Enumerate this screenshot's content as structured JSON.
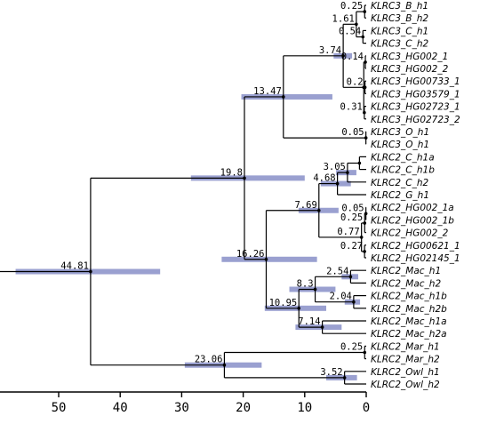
{
  "colors": {
    "branch": "#000000",
    "hpd_bar": "#9aa0d0"
  },
  "axis": {
    "reversed": true,
    "range": [
      0,
      60
    ],
    "ticks": [
      {
        "value": 50,
        "label": "50"
      },
      {
        "value": 40,
        "label": "40"
      },
      {
        "value": 30,
        "label": "30"
      },
      {
        "value": 20,
        "label": "20"
      },
      {
        "value": 10,
        "label": "10"
      },
      {
        "value": 0,
        "label": "0"
      }
    ]
  },
  "taxa": [
    "KLRC3_B_h1",
    "KLRC3_B_h2",
    "KLRC3_C_h1",
    "KLRC3_C_h2",
    "KLRC3_HG002_1",
    "KLRC3_HG002_2",
    "KLRC3_HG00733_1",
    "KLRC3_HG03579_1",
    "KLRC3_HG02723_1",
    "KLRC3_HG02723_2",
    "KLRC3_O_h1",
    "KLRC3_O_h1",
    "KLRC2_C_h1a",
    "KLRC2_C_h1b",
    "KLRC2_C_h2",
    "KLRC2_G_h1",
    "KLRC2_HG002_1a",
    "KLRC2_HG002_1b",
    "KLRC2_HG002_2",
    "KLRC2_HG00621_1",
    "KLRC2_HG02145_1",
    "KLRC2_Mac_h1",
    "KLRC2_Mac_h2",
    "KLRC2_Mac_h1b",
    "KLRC2_Mac_h2b",
    "KLRC2_Mac_h1a",
    "KLRC2_Mac_h2a",
    "KLRC2_Mar_h1",
    "KLRC2_Mar_h2",
    "KLRC2_Owl_h1",
    "KLRC2_Owl_h2"
  ],
  "nodes": [
    {
      "id": "n1",
      "children": [
        "t0",
        "t1"
      ],
      "age": 0.25,
      "label": "0.25"
    },
    {
      "id": "n2",
      "children": [
        "t2",
        "t3"
      ],
      "age": 0.54,
      "label": "0.54"
    },
    {
      "id": "n3",
      "children": [
        "n1",
        "n2"
      ],
      "age": 1.61,
      "label": "1.61"
    },
    {
      "id": "n4",
      "children": [
        "t4",
        "t5"
      ],
      "age": 0.14,
      "label": "0.14"
    },
    {
      "id": "n5",
      "children": [
        "t6",
        "t7"
      ],
      "age": 0.2,
      "label": "0.2"
    },
    {
      "id": "n6",
      "children": [
        "t8",
        "t9"
      ],
      "age": 0.31,
      "label": "0.31"
    },
    {
      "id": "n7",
      "children": [
        "n4",
        "n5",
        "n6"
      ],
      "age": 0.4
    },
    {
      "id": "n8",
      "children": [
        "n3",
        "n7"
      ],
      "age": 3.74,
      "label": "3.74",
      "hpd": [
        2.3,
        5.3
      ]
    },
    {
      "id": "n9",
      "children": [
        "t10",
        "t11"
      ],
      "age": 0.05,
      "label": "0.05"
    },
    {
      "id": "n10",
      "children": [
        "n8",
        "n9"
      ],
      "age": 13.47,
      "label": "13.47",
      "hpd": [
        5.5,
        20.3
      ]
    },
    {
      "id": "n11",
      "children": [
        "t12",
        "t13"
      ],
      "age": 1.1
    },
    {
      "id": "n12",
      "children": [
        "n11",
        "t14"
      ],
      "age": 3.05,
      "label": "3.05",
      "hpd": [
        1.6,
        4.9
      ]
    },
    {
      "id": "n13",
      "children": [
        "n12",
        "t15"
      ],
      "age": 4.68,
      "label": "4.68",
      "hpd": [
        2.5,
        7.4
      ]
    },
    {
      "id": "n14",
      "children": [
        "t16",
        "t17"
      ],
      "age": 0.05,
      "label": "0.05"
    },
    {
      "id": "n15",
      "children": [
        "n14",
        "t18"
      ],
      "age": 0.25,
      "label": "0.25"
    },
    {
      "id": "n16",
      "children": [
        "t19",
        "t20"
      ],
      "age": 0.27,
      "label": "0.27"
    },
    {
      "id": "n17",
      "children": [
        "n15",
        "n16"
      ],
      "age": 0.77,
      "label": "0.77"
    },
    {
      "id": "n18",
      "children": [
        "n13",
        "n17"
      ],
      "age": 7.69,
      "label": "7.69",
      "hpd": [
        4.5,
        11.0
      ]
    },
    {
      "id": "n19",
      "children": [
        "t21",
        "t22"
      ],
      "age": 2.54,
      "label": "2.54",
      "hpd": [
        1.3,
        4.0
      ]
    },
    {
      "id": "n20",
      "children": [
        "t23",
        "t24"
      ],
      "age": 2.04,
      "label": "2.04",
      "hpd": [
        1.0,
        3.5
      ]
    },
    {
      "id": "n21",
      "children": [
        "n19",
        "n20"
      ],
      "age": 8.3,
      "label": "8.3",
      "hpd": [
        5.0,
        12.5
      ]
    },
    {
      "id": "n22",
      "children": [
        "t25",
        "t26"
      ],
      "age": 7.14,
      "label": "7.14",
      "hpd": [
        4.0,
        11.5
      ]
    },
    {
      "id": "n23",
      "children": [
        "n21",
        "n22"
      ],
      "age": 10.95,
      "label": "10.95",
      "hpd": [
        6.5,
        16.5
      ]
    },
    {
      "id": "n24",
      "children": [
        "n18",
        "n23"
      ],
      "age": 16.26,
      "label": "16.26",
      "hpd": [
        8.0,
        23.5
      ]
    },
    {
      "id": "n25",
      "children": [
        "n10",
        "n24"
      ],
      "age": 19.8,
      "label": "19.8",
      "hpd": [
        10.0,
        28.5
      ]
    },
    {
      "id": "n26",
      "children": [
        "t27",
        "t28"
      ],
      "age": 0.25,
      "label": "0.25"
    },
    {
      "id": "n27",
      "children": [
        "t29",
        "t30"
      ],
      "age": 3.52,
      "label": "3.52",
      "hpd": [
        1.5,
        6.5
      ]
    },
    {
      "id": "n28",
      "children": [
        "n26",
        "n27"
      ],
      "age": 23.06,
      "label": "23.06",
      "hpd": [
        17.0,
        29.5
      ]
    },
    {
      "id": "n29",
      "children": [
        "n25",
        "n28"
      ],
      "age": 44.81,
      "label": "44.81",
      "hpd": [
        33.5,
        57.0
      ]
    }
  ]
}
